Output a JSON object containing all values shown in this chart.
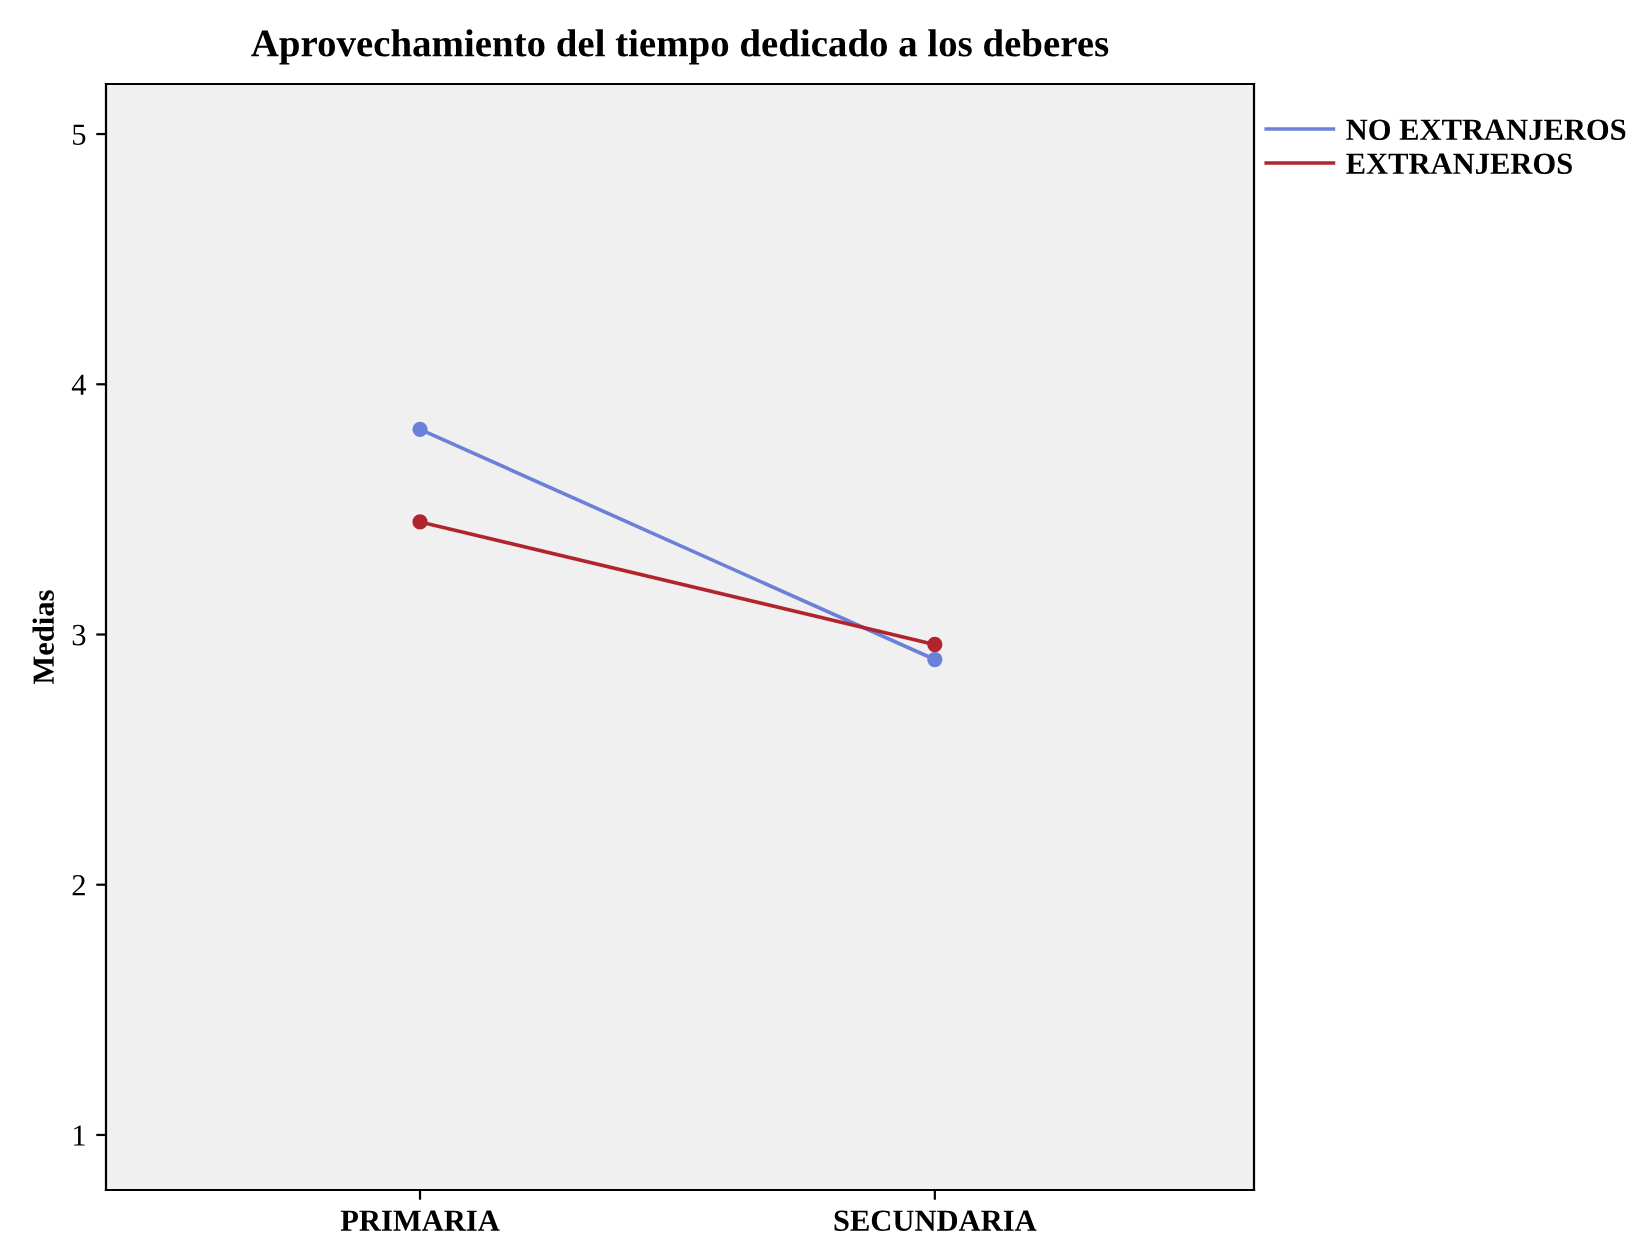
{
  "chart_data": {
    "type": "line",
    "title": "Aprovechamiento del tiempo dedicado a los deberes",
    "ylabel": "Medias",
    "categories": [
      "PRIMARIA",
      "SECUNDARIA"
    ],
    "series": [
      {
        "name": "NO EXTRANJEROS",
        "color": "#6b80d8",
        "values": [
          3.82,
          2.9
        ]
      },
      {
        "name": "EXTRANJEROS",
        "color": "#b0242c",
        "values": [
          3.45,
          2.96
        ]
      }
    ],
    "ylim": [
      0.78,
      5.2
    ],
    "yticks": [
      1,
      2,
      3,
      4,
      5
    ],
    "grid": false,
    "legend": "top right",
    "marker": "circle",
    "line_style": "solid"
  }
}
